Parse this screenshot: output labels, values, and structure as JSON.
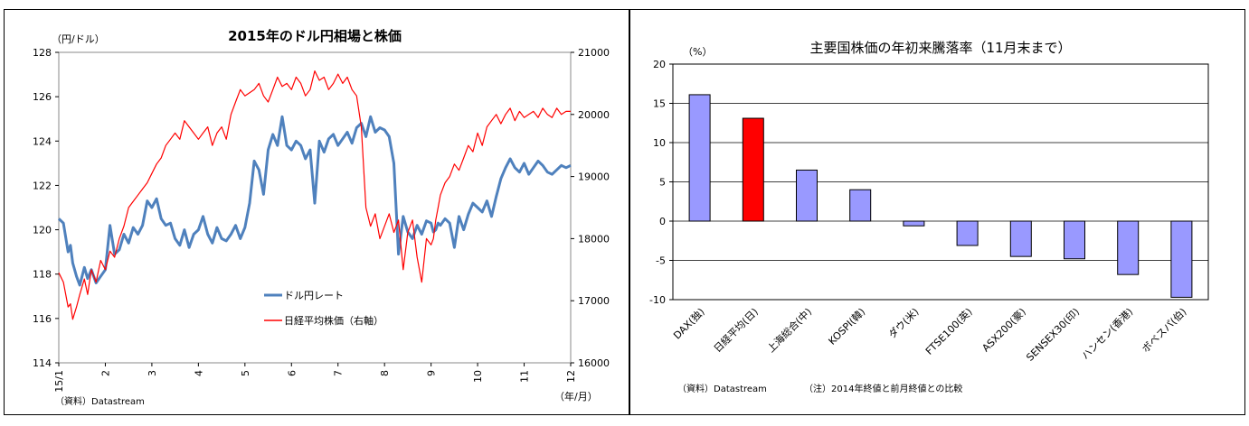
{
  "chart_data": [
    {
      "type": "line",
      "title": "2015年のドル円相場と株価",
      "ylabel_left": "（円/ドル）",
      "xlabel": "（年/月）",
      "source": "（資料）Datastream",
      "x_ticks": [
        "15/1",
        "2",
        "3",
        "4",
        "5",
        "6",
        "7",
        "8",
        "9",
        "10",
        "11",
        "12"
      ],
      "y_left": {
        "min": 114,
        "max": 128,
        "ticks": [
          "114",
          "116",
          "118",
          "120",
          "122",
          "124",
          "126",
          "128"
        ]
      },
      "y_right": {
        "min": 16000,
        "max": 21000,
        "ticks": [
          "16000",
          "17000",
          "18000",
          "19000",
          "20000",
          "21000"
        ]
      },
      "grid": false,
      "legend_placement": "center",
      "series": [
        {
          "name": "ドル円レート",
          "axis": "left",
          "color": "#4f81bd",
          "x": [
            0,
            0.1,
            0.2,
            0.25,
            0.3,
            0.38,
            0.45,
            0.55,
            0.62,
            0.7,
            0.8,
            0.9,
            1.0,
            1.1,
            1.2,
            1.3,
            1.4,
            1.5,
            1.6,
            1.7,
            1.8,
            1.9,
            2.0,
            2.1,
            2.2,
            2.3,
            2.4,
            2.5,
            2.6,
            2.7,
            2.8,
            2.9,
            3.0,
            3.1,
            3.2,
            3.3,
            3.4,
            3.5,
            3.6,
            3.7,
            3.8,
            3.9,
            4.0,
            4.1,
            4.2,
            4.3,
            4.4,
            4.5,
            4.6,
            4.7,
            4.8,
            4.9,
            5.0,
            5.1,
            5.2,
            5.3,
            5.4,
            5.5,
            5.6,
            5.7,
            5.8,
            5.9,
            6.0,
            6.1,
            6.2,
            6.3,
            6.4,
            6.5,
            6.6,
            6.7,
            6.8,
            6.9,
            7.0,
            7.1,
            7.2,
            7.3,
            7.4,
            7.5,
            7.6,
            7.7,
            7.8,
            7.9,
            8.0,
            8.05,
            8.1,
            8.15,
            8.2,
            8.3,
            8.4,
            8.5,
            8.6,
            8.7,
            8.8,
            8.9,
            9.0,
            9.1,
            9.2,
            9.3,
            9.4,
            9.5,
            9.6,
            9.7,
            9.8,
            9.9,
            10.0,
            10.1,
            10.2,
            10.3,
            10.4,
            10.5,
            10.6,
            10.7,
            10.8,
            10.9,
            11.0
          ],
          "values": [
            120.5,
            120.3,
            119.0,
            119.3,
            118.5,
            117.9,
            117.5,
            118.3,
            117.8,
            118.2,
            117.6,
            117.9,
            118.2,
            120.2,
            118.9,
            119.1,
            119.8,
            119.4,
            120.1,
            119.8,
            120.2,
            121.3,
            121.0,
            121.4,
            120.5,
            120.2,
            120.3,
            119.6,
            119.3,
            120.0,
            119.2,
            119.8,
            120.0,
            120.6,
            119.8,
            119.4,
            120.1,
            119.6,
            119.5,
            119.8,
            120.2,
            119.6,
            120.1,
            121.2,
            123.1,
            122.7,
            121.6,
            123.6,
            124.3,
            123.8,
            125.1,
            123.8,
            123.6,
            124.0,
            123.8,
            123.2,
            123.6,
            121.2,
            124.0,
            123.5,
            124.1,
            124.3,
            123.8,
            124.1,
            124.4,
            123.9,
            124.6,
            124.8,
            124.2,
            125.1,
            124.4,
            124.6,
            124.5,
            124.2,
            123.0,
            118.9,
            120.6,
            119.9,
            119.6,
            120.2,
            119.8,
            120.4,
            120.3,
            119.9,
            120.0,
            120.3,
            120.2,
            120.5,
            120.3,
            119.2,
            120.6,
            120.0,
            120.7,
            121.2,
            121.0,
            120.8,
            121.3,
            120.6,
            121.5,
            122.3,
            122.8,
            123.2,
            122.8,
            122.6,
            123.0,
            122.5,
            122.8,
            123.1,
            122.9,
            122.6,
            122.5,
            122.7,
            122.9,
            122.8,
            122.9
          ]
        },
        {
          "name": "日経平均株価（右軸）",
          "axis": "right",
          "color": "#ff0000",
          "x": [
            0,
            0.1,
            0.2,
            0.25,
            0.3,
            0.38,
            0.45,
            0.55,
            0.62,
            0.7,
            0.8,
            0.9,
            1.0,
            1.1,
            1.2,
            1.3,
            1.4,
            1.5,
            1.6,
            1.7,
            1.8,
            1.9,
            2.0,
            2.1,
            2.2,
            2.3,
            2.4,
            2.5,
            2.6,
            2.7,
            2.8,
            2.9,
            3.0,
            3.1,
            3.2,
            3.3,
            3.4,
            3.5,
            3.6,
            3.7,
            3.8,
            3.9,
            4.0,
            4.1,
            4.2,
            4.3,
            4.4,
            4.5,
            4.6,
            4.7,
            4.8,
            4.9,
            5.0,
            5.1,
            5.2,
            5.3,
            5.4,
            5.5,
            5.6,
            5.7,
            5.8,
            5.9,
            6.0,
            6.1,
            6.2,
            6.3,
            6.4,
            6.5,
            6.6,
            6.7,
            6.8,
            6.9,
            7.0,
            7.1,
            7.2,
            7.3,
            7.4,
            7.5,
            7.6,
            7.7,
            7.8,
            7.9,
            8.0,
            8.05,
            8.1,
            8.15,
            8.2,
            8.3,
            8.4,
            8.5,
            8.6,
            8.7,
            8.8,
            8.9,
            9.0,
            9.1,
            9.2,
            9.3,
            9.4,
            9.5,
            9.6,
            9.7,
            9.8,
            9.9,
            10.0,
            10.1,
            10.2,
            10.3,
            10.4,
            10.5,
            10.6,
            10.7,
            10.8,
            10.9,
            11.0
          ],
          "values": [
            17450,
            17300,
            16900,
            16950,
            16700,
            16900,
            17100,
            17350,
            17100,
            17500,
            17300,
            17650,
            17500,
            17800,
            17700,
            18000,
            18200,
            18500,
            18600,
            18700,
            18800,
            18900,
            19050,
            19200,
            19300,
            19500,
            19600,
            19700,
            19600,
            19900,
            19800,
            19700,
            19600,
            19700,
            19800,
            19500,
            19700,
            19800,
            19600,
            20000,
            20200,
            20400,
            20300,
            20350,
            20400,
            20500,
            20300,
            20200,
            20400,
            20600,
            20450,
            20500,
            20400,
            20600,
            20500,
            20300,
            20400,
            20700,
            20550,
            20600,
            20400,
            20500,
            20650,
            20500,
            20600,
            20400,
            20300,
            19800,
            18500,
            18200,
            18400,
            18000,
            18200,
            18400,
            18100,
            18300,
            17500,
            18100,
            18300,
            17700,
            17300,
            18000,
            17900,
            18000,
            18300,
            18500,
            18700,
            18900,
            19000,
            19200,
            19100,
            19300,
            19500,
            19400,
            19700,
            19500,
            19800,
            19900,
            20000,
            19850,
            20000,
            20100,
            19900,
            20050,
            19950,
            20000,
            20050,
            19950,
            20100,
            20000,
            19950,
            20100,
            20000,
            20050,
            20050
          ]
        }
      ]
    },
    {
      "type": "bar",
      "title": "主要国株価の年初来騰落率（11月末まで）",
      "ylabel": "（%）",
      "ylim": [
        -10,
        20
      ],
      "y_ticks": [
        "20",
        "15",
        "10",
        "5",
        "0",
        "-5",
        "-10"
      ],
      "grid": true,
      "categories": [
        "DAX(独)",
        "日経平均(日)",
        "上海総合(中)",
        "KOSPI(韓)",
        "ダウ(米)",
        "FTSE100(英)",
        "ASX200(豪)",
        "SENSEX30(印)",
        "ハンセン(香港)",
        "ボベスパ(伯)"
      ],
      "values": [
        16.1,
        13.1,
        6.5,
        4.0,
        -0.6,
        -3.1,
        -4.5,
        -4.8,
        -6.8,
        -9.7
      ],
      "colors": [
        "#9999ff",
        "#ff0000",
        "#9999ff",
        "#9999ff",
        "#9999ff",
        "#9999ff",
        "#9999ff",
        "#9999ff",
        "#9999ff",
        "#9999ff"
      ],
      "source": "（資料）Datastream",
      "note": "（注）2014年終値と前月終値との比較"
    }
  ]
}
